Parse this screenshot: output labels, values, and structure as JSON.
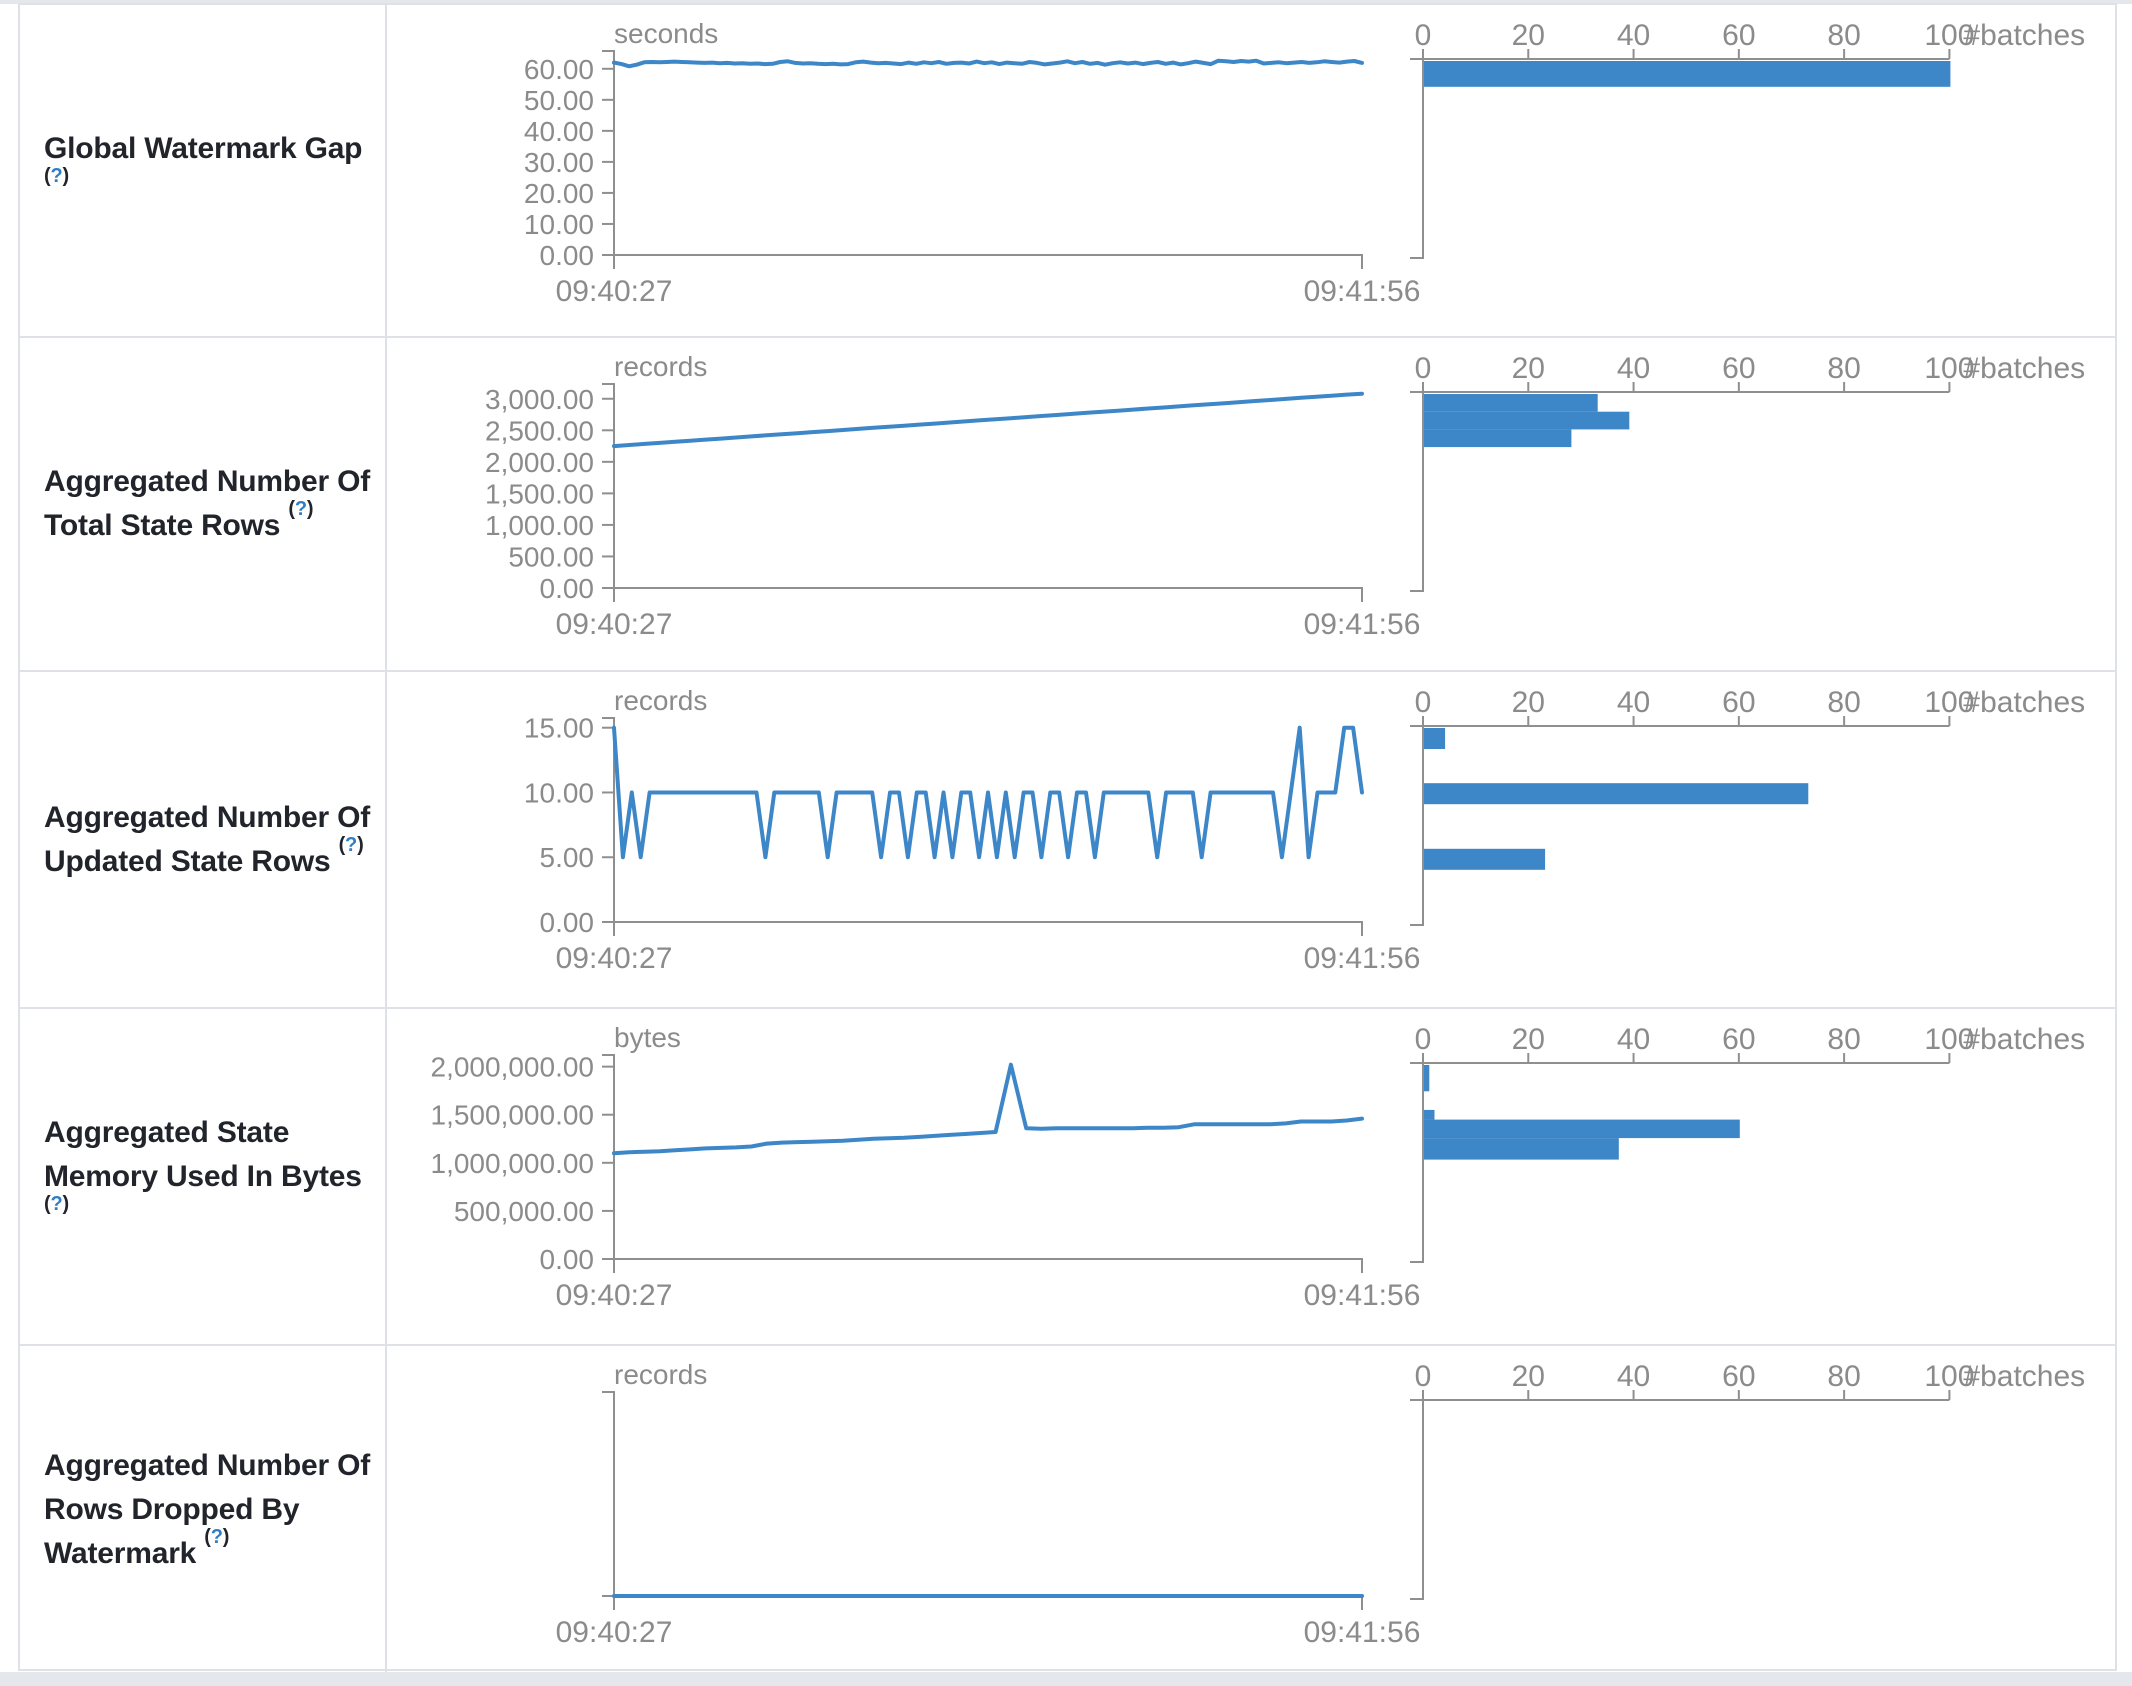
{
  "ui": {
    "strip_color": "#e4e7eb",
    "table_border": "#dee2e6",
    "title_color": "#21252b",
    "gray_text": "#8b8b8b",
    "axis_color": "#8f8f8f",
    "accent_blue": "#3d87c8",
    "help_blue": "#2e7ec5",
    "help_open": "(",
    "help_q": "?",
    "help_close": ")",
    "batches_axis_label": "#batches"
  },
  "chart_data": {
    "note": "Spark Structured Streaming statistics: each metric has a line timeline and a horizontal histogram of batch counts",
    "metrics": [
      {
        "title": "Global Watermark Gap",
        "timeline": {
          "type": "line",
          "unit": "seconds",
          "x_start_label": "09:40:27",
          "x_end_label": "09:41:56",
          "y_ticks": [
            {
              "v": 60,
              "label": "60.00"
            },
            {
              "v": 50,
              "label": "50.00"
            },
            {
              "v": 40,
              "label": "40.00"
            },
            {
              "v": 30,
              "label": "30.00"
            },
            {
              "v": 20,
              "label": "20.00"
            },
            {
              "v": 10,
              "label": "10.00"
            },
            {
              "v": 0,
              "label": "0.00"
            }
          ],
          "y_domain_max": 65.73,
          "values": [
            62.0,
            61.5,
            60.8,
            61.3,
            62.1,
            62.2,
            62.1,
            62.2,
            62.3,
            62.2,
            62.1,
            62.0,
            61.9,
            62.0,
            61.8,
            61.9,
            61.7,
            61.8,
            61.6,
            61.7,
            61.5,
            61.6,
            62.2,
            62.4,
            61.9,
            61.7,
            61.8,
            61.6,
            61.5,
            61.6,
            61.4,
            61.5,
            62.1,
            62.3,
            62.0,
            61.8,
            61.9,
            61.7,
            61.5,
            62.0,
            61.6,
            62.1,
            61.8,
            62.2,
            61.6,
            61.9,
            62.0,
            61.7,
            62.3,
            61.8,
            62.1,
            61.5,
            62.0,
            61.8,
            61.6,
            62.2,
            61.9,
            61.4,
            61.7,
            62.0,
            62.4,
            61.8,
            62.2,
            61.6,
            61.9,
            61.3,
            61.8,
            62.1,
            61.7,
            62.0,
            61.5,
            61.9,
            62.2,
            61.6,
            62.0,
            61.4,
            61.8,
            62.3,
            61.9,
            61.5,
            62.6,
            62.4,
            62.2,
            62.5,
            62.3,
            62.6,
            61.7,
            61.9,
            62.1,
            61.8,
            62.0,
            62.2,
            61.9,
            62.1,
            62.4,
            62.2,
            62.0,
            62.3,
            62.5,
            61.9
          ]
        },
        "histogram": {
          "type": "bar",
          "x_ticks": [
            {
              "v": 0,
              "label": "0"
            },
            {
              "v": 20,
              "label": "20"
            },
            {
              "v": 40,
              "label": "40"
            },
            {
              "v": 60,
              "label": "60"
            },
            {
              "v": 80,
              "label": "80"
            },
            {
              "v": 100,
              "label": "100"
            }
          ],
          "x_max": 100,
          "value_domain_max": 62.6,
          "bars": [
            {
              "count": 100,
              "value_range": [
                54.4,
                62.6
              ]
            }
          ]
        }
      },
      {
        "title": "Aggregated Number Of Total State Rows",
        "timeline": {
          "type": "line",
          "unit": "records",
          "x_start_label": "09:40:27",
          "x_end_label": "09:41:56",
          "y_ticks": [
            {
              "v": 3000,
              "label": "3,000.00"
            },
            {
              "v": 2500,
              "label": "2,500.00"
            },
            {
              "v": 2000,
              "label": "2,000.00"
            },
            {
              "v": 1500,
              "label": "1,500.00"
            },
            {
              "v": 1000,
              "label": "1,000.00"
            },
            {
              "v": 500,
              "label": "500.00"
            },
            {
              "v": 0,
              "label": "0.00"
            }
          ],
          "y_domain_max": 3234,
          "values": [
            2250,
            2267,
            2284,
            2301,
            2318,
            2335,
            2352,
            2369,
            2386,
            2403,
            2420,
            2437,
            2454,
            2471,
            2488,
            2505,
            2522,
            2539,
            2556,
            2573,
            2590,
            2607,
            2624,
            2641,
            2658,
            2675,
            2692,
            2709,
            2726,
            2743,
            2760,
            2777,
            2794,
            2811,
            2828,
            2845,
            2862,
            2879,
            2896,
            2913,
            2930,
            2947,
            2964,
            2981,
            2998,
            3015,
            3032,
            3049,
            3066,
            3080
          ]
        },
        "histogram": {
          "type": "bar",
          "x_ticks": [
            {
              "v": 0,
              "label": "0"
            },
            {
              "v": 20,
              "label": "20"
            },
            {
              "v": 40,
              "label": "40"
            },
            {
              "v": 60,
              "label": "60"
            },
            {
              "v": 80,
              "label": "80"
            },
            {
              "v": 100,
              "label": "100"
            }
          ],
          "x_max": 100,
          "value_domain_max": 3080,
          "bars": [
            {
              "count": 33,
              "value_range": [
                2803,
                3080
              ]
            },
            {
              "count": 39,
              "value_range": [
                2526,
                2803
              ]
            },
            {
              "count": 28,
              "value_range": [
                2249,
                2526
              ]
            }
          ]
        }
      },
      {
        "title": "Aggregated Number Of Updated State Rows",
        "timeline": {
          "type": "line",
          "unit": "records",
          "x_start_label": "09:40:27",
          "x_end_label": "09:41:56",
          "y_ticks": [
            {
              "v": 15,
              "label": "15.00"
            },
            {
              "v": 10,
              "label": "10.00"
            },
            {
              "v": 5,
              "label": "5.00"
            },
            {
              "v": 0,
              "label": "0.00"
            }
          ],
          "y_domain_max": 15.75,
          "values": [
            15,
            5,
            10,
            5,
            10,
            10,
            10,
            10,
            10,
            10,
            10,
            10,
            10,
            10,
            10,
            10,
            10,
            5,
            10,
            10,
            10,
            10,
            10,
            10,
            5,
            10,
            10,
            10,
            10,
            10,
            5,
            10,
            10,
            5,
            10,
            10,
            5,
            10,
            5,
            10,
            10,
            5,
            10,
            5,
            10,
            5,
            10,
            10,
            5,
            10,
            10,
            5,
            10,
            10,
            5,
            10,
            10,
            10,
            10,
            10,
            10,
            5,
            10,
            10,
            10,
            10,
            5,
            10,
            10,
            10,
            10,
            10,
            10,
            10,
            10,
            5,
            10,
            15,
            5,
            10,
            10,
            10,
            15,
            15,
            10
          ]
        },
        "histogram": {
          "type": "bar",
          "x_ticks": [
            {
              "v": 0,
              "label": "0"
            },
            {
              "v": 20,
              "label": "20"
            },
            {
              "v": 40,
              "label": "40"
            },
            {
              "v": 60,
              "label": "60"
            },
            {
              "v": 80,
              "label": "80"
            },
            {
              "v": 100,
              "label": "100"
            }
          ],
          "x_max": 100,
          "value_domain_max": 15,
          "bars": [
            {
              "count": 4,
              "value_range": [
                13.4,
                15
              ]
            },
            {
              "count": 73,
              "value_range": [
                9.2,
                10.8
              ]
            },
            {
              "count": 23,
              "value_range": [
                4.2,
                5.8
              ]
            }
          ]
        }
      },
      {
        "title": "Aggregated State Memory Used In Bytes",
        "timeline": {
          "type": "line",
          "unit": "bytes",
          "x_start_label": "09:40:27",
          "x_end_label": "09:41:56",
          "y_ticks": [
            {
              "v": 2000000,
              "label": "2,000,000.00"
            },
            {
              "v": 1500000,
              "label": "1,500,000.00"
            },
            {
              "v": 1000000,
              "label": "1,000,000.00"
            },
            {
              "v": 500000,
              "label": "500,000.00"
            },
            {
              "v": 0,
              "label": "0.00"
            }
          ],
          "y_domain_max": 2121000,
          "values": [
            1100000,
            1110000,
            1115000,
            1120000,
            1130000,
            1140000,
            1150000,
            1155000,
            1160000,
            1170000,
            1200000,
            1210000,
            1215000,
            1220000,
            1225000,
            1230000,
            1240000,
            1250000,
            1255000,
            1260000,
            1270000,
            1280000,
            1290000,
            1300000,
            1310000,
            1320000,
            2020000,
            1360000,
            1355000,
            1360000,
            1360000,
            1360000,
            1360000,
            1360000,
            1360000,
            1365000,
            1365000,
            1370000,
            1400000,
            1400000,
            1400000,
            1400000,
            1400000,
            1400000,
            1410000,
            1430000,
            1430000,
            1430000,
            1440000,
            1460000
          ]
        },
        "histogram": {
          "type": "bar",
          "x_ticks": [
            {
              "v": 0,
              "label": "0"
            },
            {
              "v": 20,
              "label": "20"
            },
            {
              "v": 40,
              "label": "40"
            },
            {
              "v": 60,
              "label": "60"
            },
            {
              "v": 80,
              "label": "80"
            },
            {
              "v": 100,
              "label": "100"
            }
          ],
          "x_max": 100,
          "value_domain_max": 2020000,
          "bars": [
            {
              "count": 1,
              "value_range": [
                1750000,
                2020000
              ]
            },
            {
              "count": 2,
              "value_range": [
                1460000,
                1560000
              ]
            },
            {
              "count": 60,
              "value_range": [
                1270000,
                1460000
              ]
            },
            {
              "count": 37,
              "value_range": [
                1050000,
                1270000
              ]
            }
          ]
        }
      },
      {
        "title": "Aggregated Number Of Rows Dropped By Watermark",
        "timeline": {
          "type": "line",
          "unit": "records",
          "x_start_label": "09:40:27",
          "x_end_label": "09:41:56",
          "y_ticks": [],
          "y_domain_max": 1,
          "values": [
            0,
            0
          ]
        },
        "histogram": {
          "type": "bar",
          "x_ticks": [
            {
              "v": 0,
              "label": "0"
            },
            {
              "v": 20,
              "label": "20"
            },
            {
              "v": 40,
              "label": "40"
            },
            {
              "v": 60,
              "label": "60"
            },
            {
              "v": 80,
              "label": "80"
            },
            {
              "v": 100,
              "label": "100"
            }
          ],
          "x_max": 100,
          "value_domain_max": 1,
          "bars": []
        }
      }
    ]
  }
}
